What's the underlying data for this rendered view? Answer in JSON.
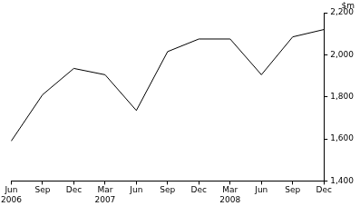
{
  "chart_data": {
    "type": "line",
    "ylabel": "$m",
    "categories": [
      "Jun 2006",
      "Sep",
      "Dec",
      "Mar 2007",
      "Jun",
      "Sep",
      "Dec",
      "Mar 2008",
      "Jun",
      "Sep",
      "Dec"
    ],
    "values": [
      1590,
      1810,
      1935,
      1905,
      1735,
      2015,
      2075,
      2075,
      1905,
      2085,
      2120
    ],
    "color": "#000000",
    "ylim": [
      1400,
      2200
    ],
    "yticks": [
      1400,
      1600,
      1800,
      2000,
      2200
    ],
    "grid": false
  }
}
